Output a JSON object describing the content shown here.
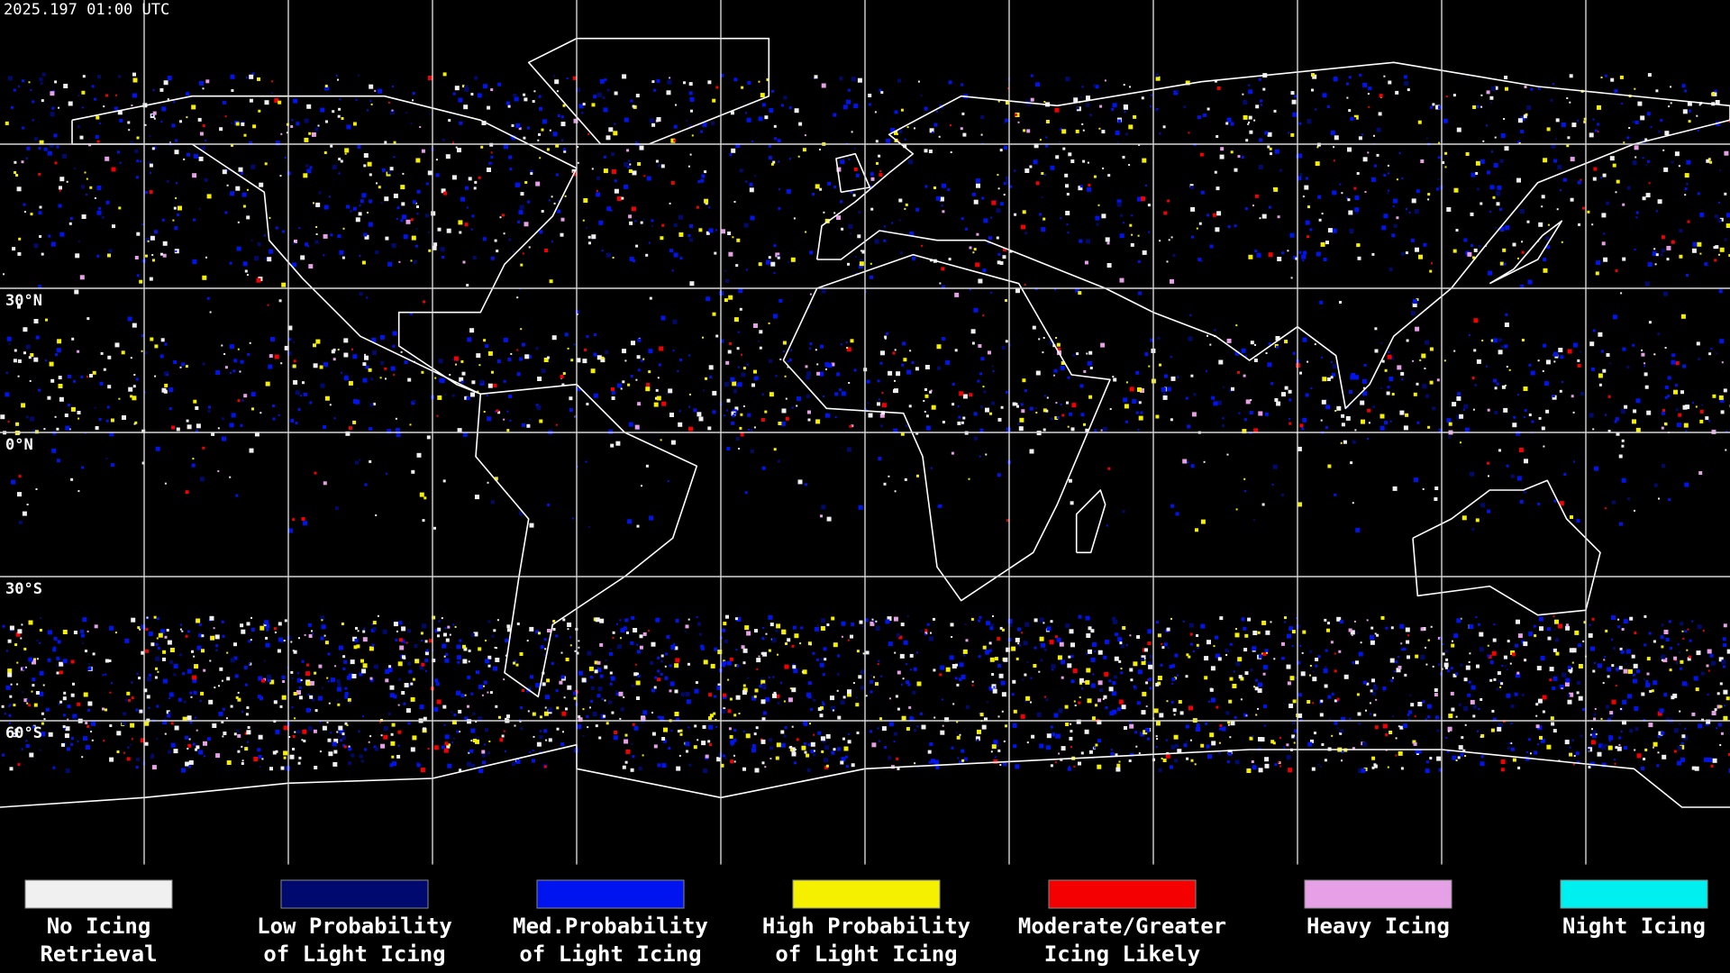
{
  "header": {
    "timestamp": "2025.197 01:00 UTC"
  },
  "map": {
    "latitude_labels": [
      "30°N",
      "0°N",
      "30°S",
      "60°S"
    ]
  },
  "legend": [
    {
      "label_lines": [
        "No Icing",
        "Retrieval"
      ],
      "color": "#f0f0f0"
    },
    {
      "label_lines": [
        "Low Probability",
        "of Light Icing"
      ],
      "color": "#000a6e"
    },
    {
      "label_lines": [
        "Med.Probability",
        "of Light Icing"
      ],
      "color": "#0014f0"
    },
    {
      "label_lines": [
        "High Probability",
        "of Light Icing"
      ],
      "color": "#f5f000"
    },
    {
      "label_lines": [
        "Moderate/Greater",
        "Icing Likely"
      ],
      "color": "#f50000"
    },
    {
      "label_lines": [
        "Heavy Icing"
      ],
      "color": "#e6a0e6"
    },
    {
      "label_lines": [
        "Night Icing"
      ],
      "color": "#00f0f0"
    }
  ]
}
